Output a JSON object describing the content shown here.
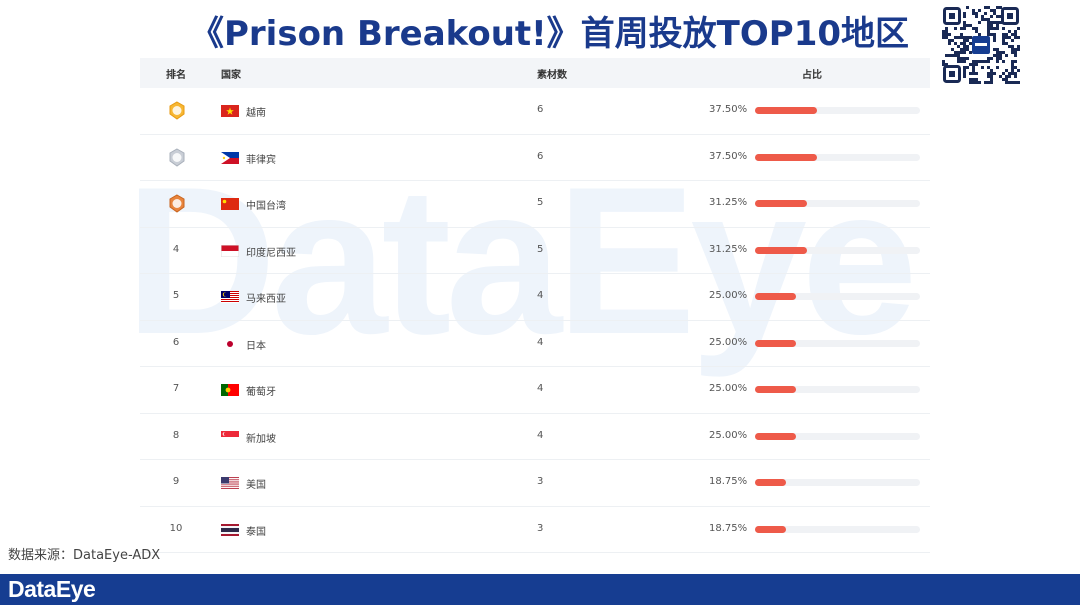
{
  "title": "《Prison Breakout!》首周投放TOP10地区",
  "watermark_text": "DataEye",
  "headers": {
    "rank": "排名",
    "country": "国家",
    "count": "素材数",
    "share": "占比"
  },
  "rows": [
    {
      "rank": "1",
      "medal": "gold",
      "country": "越南",
      "flag": "vietnam",
      "count": "6",
      "pct_label": "37.50%",
      "pct": 37.5
    },
    {
      "rank": "2",
      "medal": "silver",
      "country": "菲律宾",
      "flag": "philippines",
      "count": "6",
      "pct_label": "37.50%",
      "pct": 37.5
    },
    {
      "rank": "3",
      "medal": "bronze",
      "country": "中国台湾",
      "flag": "china",
      "count": "5",
      "pct_label": "31.25%",
      "pct": 31.25
    },
    {
      "rank": "4",
      "medal": "",
      "country": "印度尼西亚",
      "flag": "indonesia",
      "count": "5",
      "pct_label": "31.25%",
      "pct": 31.25
    },
    {
      "rank": "5",
      "medal": "",
      "country": "马来西亚",
      "flag": "malaysia",
      "count": "4",
      "pct_label": "25.00%",
      "pct": 25
    },
    {
      "rank": "6",
      "medal": "",
      "country": "日本",
      "flag": "japan",
      "count": "4",
      "pct_label": "25.00%",
      "pct": 25
    },
    {
      "rank": "7",
      "medal": "",
      "country": "葡萄牙",
      "flag": "portugal",
      "count": "4",
      "pct_label": "25.00%",
      "pct": 25
    },
    {
      "rank": "8",
      "medal": "",
      "country": "新加坡",
      "flag": "singapore",
      "count": "4",
      "pct_label": "25.00%",
      "pct": 25
    },
    {
      "rank": "9",
      "medal": "",
      "country": "美国",
      "flag": "usa",
      "count": "3",
      "pct_label": "18.75%",
      "pct": 18.75
    },
    {
      "rank": "10",
      "medal": "",
      "country": "泰国",
      "flag": "thailand",
      "count": "3",
      "pct_label": "18.75%",
      "pct": 18.75
    }
  ],
  "source": "数据来源：DataEye-ADX",
  "footer_logo": "DataEye",
  "qr_icon": "qr-code-icon",
  "colors": {
    "title": "#1a3a8c",
    "bar": "#ee5a49",
    "footer": "#163d91"
  }
}
